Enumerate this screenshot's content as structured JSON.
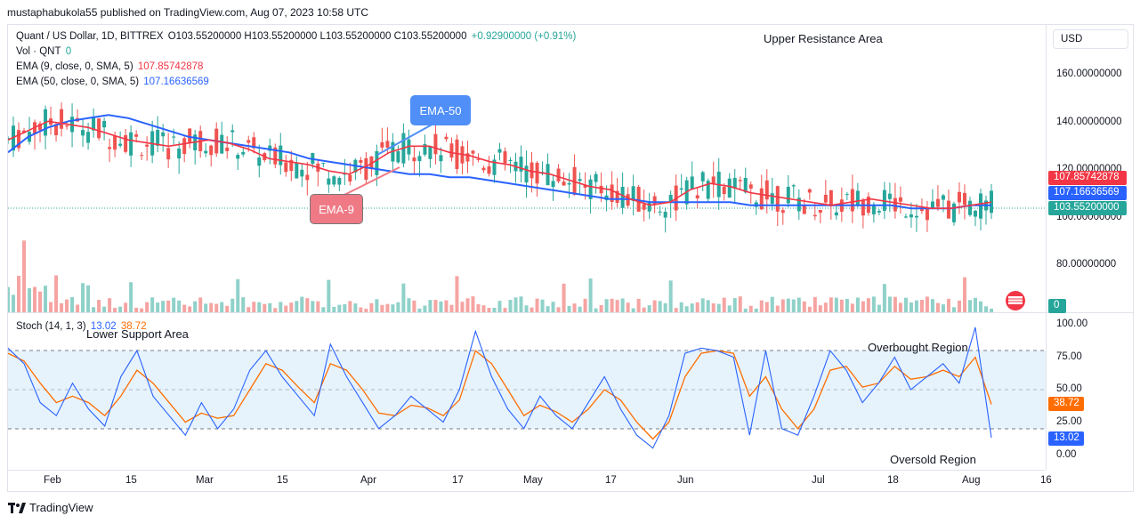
{
  "publisher": "mustaphabukola55 published on TradingView.com, Aug 07, 2023 10:58 UTC",
  "legend": {
    "symbol": "Quant / US Dollar, 1D, BITTREX",
    "ohlc": "O103.55200000 H103.55200000 L103.55200000 C103.55200000",
    "change": "+0.92900000 (+0.91%)",
    "vol_label": "Vol · QNT",
    "vol_value": "0",
    "ema9_label": "EMA (9, close, 0, SMA, 5)",
    "ema9_value": "107.85742878",
    "ema50_label": "EMA (50, close, 0, SMA, 5)",
    "ema50_value": "107.16636569",
    "stoch_label": "Stoch (14, 1, 3)",
    "stoch_k": "13.02",
    "stoch_d": "38.72"
  },
  "currency": "USD",
  "price_axis": [
    "160.00000000",
    "140.00000000",
    "120.00000000",
    "100.00000000",
    "80.00000000"
  ],
  "price_badges": {
    "ema9": "107.85742878",
    "ema50": "107.16636569",
    "last": "103.55200000",
    "volume": "0"
  },
  "stoch_axis": [
    "100.00",
    "75.00",
    "50.00",
    "25.00",
    "0.00"
  ],
  "stoch_badges": {
    "d": "38.72",
    "k": "13.02"
  },
  "time_axis": [
    "Feb",
    "15",
    "Mar",
    "15",
    "Apr",
    "17",
    "May",
    "17",
    "Jun",
    "Jul",
    "18",
    "Aug",
    "16"
  ],
  "annotations": {
    "upper": "Upper Resistance Area",
    "lower": "Lower Support Area",
    "overbought": "Overbought Region",
    "oversold": "Oversold Region",
    "ema50_callout": "EMA-50",
    "ema9_callout": "EMA-9"
  },
  "footer": "TradingView",
  "colors": {
    "up": "#26a69a",
    "down": "#ef5350",
    "ema9": "#f23645",
    "ema50": "#2962ff",
    "stoch_k": "#2962ff",
    "stoch_d": "#ff6d00",
    "stoch_band": "#e3f2fd"
  },
  "chart_data": {
    "type": "candlestick",
    "ema9_series": [
      128,
      131,
      134,
      133,
      132,
      130,
      128,
      127,
      126,
      127,
      128,
      127,
      125,
      122,
      121,
      120,
      118,
      117,
      120,
      124,
      126,
      126,
      124,
      123,
      121,
      120,
      118,
      117,
      115,
      113,
      112,
      109,
      107,
      108,
      112,
      114,
      113,
      111,
      110,
      109,
      108,
      107,
      108,
      109,
      108,
      107,
      106,
      106,
      107,
      108
    ],
    "ema50_series": [
      124,
      129,
      132,
      134,
      135,
      136,
      135,
      133,
      131,
      129,
      128,
      127,
      126,
      125,
      124,
      122,
      121,
      120,
      119,
      118,
      117,
      117,
      116,
      116,
      115,
      114,
      113,
      112,
      111,
      110,
      109,
      109,
      108,
      108,
      108,
      108,
      108,
      107,
      107,
      107,
      107,
      107,
      107,
      107,
      107,
      106,
      106,
      106,
      107,
      107
    ],
    "stoch_k": [
      82,
      70,
      40,
      30,
      55,
      35,
      22,
      60,
      80,
      45,
      30,
      15,
      40,
      20,
      35,
      65,
      80,
      60,
      45,
      30,
      85,
      60,
      40,
      20,
      30,
      45,
      35,
      25,
      50,
      95,
      60,
      35,
      20,
      45,
      30,
      20,
      40,
      60,
      35,
      15,
      5,
      30,
      78,
      82,
      80,
      75,
      15,
      80,
      20,
      15,
      45,
      80,
      65,
      40,
      55,
      75,
      50,
      60,
      70,
      55,
      98,
      13
    ],
    "stoch_d": [
      78,
      72,
      55,
      40,
      45,
      40,
      30,
      45,
      65,
      55,
      40,
      25,
      32,
      28,
      30,
      50,
      70,
      65,
      52,
      40,
      70,
      65,
      50,
      32,
      30,
      38,
      36,
      30,
      42,
      80,
      70,
      50,
      30,
      38,
      33,
      25,
      35,
      50,
      42,
      25,
      12,
      25,
      60,
      78,
      80,
      78,
      45,
      60,
      35,
      20,
      35,
      65,
      68,
      52,
      55,
      68,
      58,
      60,
      65,
      60,
      75,
      38.72
    ],
    "ylim": [
      80,
      165
    ],
    "stoch_ylim": [
      0,
      100
    ]
  }
}
